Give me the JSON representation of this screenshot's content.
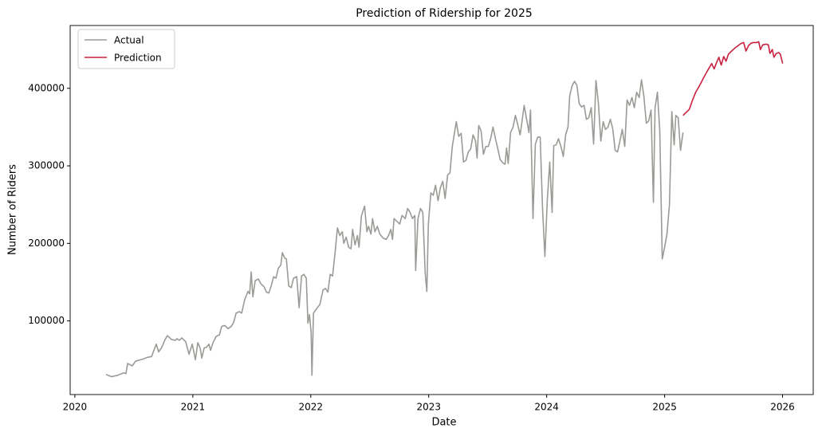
{
  "chart_data": {
    "type": "line",
    "title": "Prediction of Ridership for 2025",
    "xlabel": "Date",
    "ylabel": "Number of Riders",
    "xlim": [
      2019.96,
      2026.26
    ],
    "ylim": [
      5000,
      481000
    ],
    "xticks": [
      2020,
      2021,
      2022,
      2023,
      2024,
      2025,
      2026
    ],
    "yticks": [
      100000,
      200000,
      300000,
      400000
    ],
    "grid": false,
    "legend": "upper left",
    "series": [
      {
        "name": "Actual",
        "color": "#9a9a96",
        "x": [
          2020.264,
          2020.311,
          2020.365,
          2020.413,
          2020.433,
          2020.447,
          2020.487,
          2020.514,
          2020.582,
          2020.616,
          2020.65,
          2020.67,
          2020.69,
          2020.71,
          2020.737,
          2020.765,
          2020.785,
          2020.819,
          2020.853,
          2020.866,
          2020.886,
          2020.907,
          2020.94,
          2020.968,
          2020.995,
          2021.022,
          2021.042,
          2021.062,
          2021.076,
          2021.096,
          2021.116,
          2021.137,
          2021.15,
          2021.171,
          2021.198,
          2021.225,
          2021.245,
          2021.272,
          2021.299,
          2021.326,
          2021.346,
          2021.367,
          2021.394,
          2021.414,
          2021.441,
          2021.468,
          2021.482,
          2021.495,
          2021.509,
          2021.529,
          2021.556,
          2021.576,
          2021.604,
          2021.624,
          2021.644,
          2021.664,
          2021.685,
          2021.705,
          2021.725,
          2021.746,
          2021.759,
          2021.779,
          2021.793,
          2021.813,
          2021.834,
          2021.854,
          2021.881,
          2021.901,
          2021.922,
          2021.942,
          2021.962,
          2021.976,
          2021.989,
          2022.003,
          2022.01,
          2022.023,
          2022.05,
          2022.077,
          2022.104,
          2022.125,
          2022.145,
          2022.165,
          2022.185,
          2022.206,
          2022.226,
          2022.246,
          2022.267,
          2022.28,
          2022.3,
          2022.321,
          2022.341,
          2022.355,
          2022.375,
          2022.395,
          2022.409,
          2022.429,
          2022.456,
          2022.476,
          2022.49,
          2022.51,
          2022.524,
          2022.544,
          2022.564,
          2022.585,
          2022.612,
          2022.639,
          2022.659,
          2022.679,
          2022.693,
          2022.706,
          2022.733,
          2022.754,
          2022.774,
          2022.801,
          2022.821,
          2022.842,
          2022.862,
          2022.882,
          2022.889,
          2022.909,
          2022.93,
          2022.95,
          2022.97,
          2022.984,
          2022.997,
          2023.018,
          2023.038,
          2023.058,
          2023.079,
          2023.099,
          2023.119,
          2023.139,
          2023.16,
          2023.18,
          2023.2,
          2023.221,
          2023.234,
          2023.254,
          2023.275,
          2023.295,
          2023.315,
          2023.336,
          2023.356,
          2023.376,
          2023.397,
          2023.41,
          2023.424,
          2023.444,
          2023.464,
          2023.484,
          2023.505,
          2023.525,
          2023.545,
          2023.566,
          2023.586,
          2023.606,
          2023.627,
          2023.647,
          2023.66,
          2023.674,
          2023.694,
          2023.715,
          2023.735,
          2023.755,
          2023.775,
          2023.789,
          2023.809,
          2023.83,
          2023.85,
          2023.863,
          2023.884,
          2023.904,
          2023.924,
          2023.945,
          2023.965,
          2023.985,
          2024.005,
          2024.026,
          2024.046,
          2024.06,
          2024.08,
          2024.1,
          2024.121,
          2024.141,
          2024.161,
          2024.181,
          2024.195,
          2024.215,
          2024.236,
          2024.256,
          2024.276,
          2024.296,
          2024.317,
          2024.337,
          2024.357,
          2024.378,
          2024.398,
          2024.418,
          2024.439,
          2024.459,
          2024.479,
          2024.499,
          2024.52,
          2024.54,
          2024.56,
          2024.581,
          2024.601,
          2024.621,
          2024.641,
          2024.662,
          2024.682,
          2024.702,
          2024.723,
          2024.743,
          2024.763,
          2024.784,
          2024.804,
          2024.824,
          2024.845,
          2024.865,
          2024.885,
          2024.905,
          2024.919,
          2024.939,
          2024.959,
          2024.98,
          2025.0,
          2025.02,
          2025.041,
          2025.061,
          2025.081,
          2025.095,
          2025.115,
          2025.135,
          2025.156
        ],
        "values": [
          31000,
          28000,
          30000,
          33000,
          32000,
          45000,
          42000,
          48000,
          51000,
          53000,
          54000,
          62000,
          70000,
          60000,
          66000,
          76000,
          81000,
          76000,
          75000,
          77000,
          75000,
          78000,
          73000,
          57000,
          70000,
          50000,
          72000,
          65000,
          52000,
          65000,
          66000,
          70000,
          62000,
          72000,
          80000,
          82000,
          93000,
          94000,
          90000,
          93000,
          98000,
          110000,
          112000,
          110000,
          128000,
          138000,
          135000,
          163000,
          131000,
          152000,
          154000,
          148000,
          144000,
          137000,
          136000,
          145000,
          157000,
          155000,
          168000,
          172000,
          188000,
          181000,
          180000,
          145000,
          143000,
          155000,
          157000,
          117000,
          158000,
          160000,
          155000,
          97000,
          108000,
          85000,
          30000,
          110000,
          116000,
          121000,
          140000,
          142000,
          137000,
          160000,
          158000,
          188000,
          220000,
          210000,
          215000,
          200000,
          208000,
          195000,
          193000,
          218000,
          198000,
          210000,
          195000,
          235000,
          248000,
          215000,
          222000,
          212000,
          232000,
          215000,
          222000,
          212000,
          207000,
          205000,
          210000,
          218000,
          205000,
          232000,
          228000,
          225000,
          236000,
          232000,
          245000,
          240000,
          232000,
          236000,
          165000,
          232000,
          245000,
          240000,
          162000,
          138000,
          225000,
          265000,
          262000,
          275000,
          255000,
          272000,
          280000,
          258000,
          288000,
          291000,
          325000,
          345000,
          357000,
          338000,
          342000,
          305000,
          307000,
          318000,
          322000,
          340000,
          332000,
          310000,
          352000,
          345000,
          315000,
          325000,
          325000,
          335000,
          350000,
          335000,
          322000,
          308000,
          304000,
          302000,
          323000,
          303000,
          343000,
          350000,
          365000,
          353000,
          340000,
          355000,
          378000,
          360000,
          343000,
          372000,
          232000,
          328000,
          337000,
          337000,
          245000,
          183000,
          255000,
          305000,
          240000,
          326000,
          327000,
          335000,
          325000,
          312000,
          340000,
          350000,
          390000,
          403000,
          409000,
          404000,
          380000,
          376000,
          378000,
          360000,
          362000,
          375000,
          328000,
          410000,
          380000,
          332000,
          357000,
          347000,
          350000,
          360000,
          348000,
          320000,
          318000,
          332000,
          347000,
          325000,
          385000,
          378000,
          388000,
          375000,
          395000,
          388000,
          411000,
          390000,
          355000,
          358000,
          372000,
          253000,
          375000,
          395000,
          345000,
          180000,
          195000,
          212000,
          250000,
          370000,
          327000,
          365000,
          362000,
          320000,
          343000
        ]
      },
      {
        "name": "Prediction",
        "color": "#c8203f",
        "x": [
          2025.156,
          2025.183,
          2025.21,
          2025.237,
          2025.264,
          2025.298,
          2025.332,
          2025.365,
          2025.399,
          2025.42,
          2025.44,
          2025.46,
          2025.48,
          2025.501,
          2025.521,
          2025.541,
          2025.568,
          2025.596,
          2025.623,
          2025.65,
          2025.67,
          2025.69,
          2025.711,
          2025.731,
          2025.751,
          2025.778,
          2025.798,
          2025.812,
          2025.832,
          2025.859,
          2025.88,
          2025.893,
          2025.913,
          2025.927,
          2025.947,
          2025.968,
          2025.981,
          2026.001
        ],
        "values": [
          365000,
          369000,
          373000,
          385000,
          395000,
          404000,
          414000,
          423000,
          432000,
          425000,
          433000,
          440000,
          430000,
          441000,
          435000,
          444000,
          448000,
          452000,
          455000,
          458000,
          459000,
          448000,
          455000,
          458000,
          459000,
          459000,
          460000,
          450000,
          456000,
          457000,
          456000,
          445000,
          450000,
          440000,
          445000,
          446000,
          444000,
          432000
        ]
      }
    ]
  }
}
